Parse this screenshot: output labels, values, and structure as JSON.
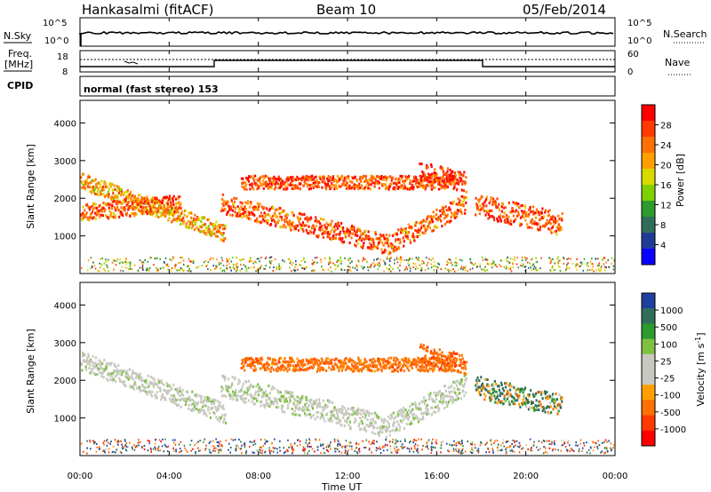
{
  "header": {
    "station": "Hankasalmi (fitACF)",
    "beam": "Beam 10",
    "date": "05/Feb/2014"
  },
  "summary": {
    "nsky_label": "N.Sky",
    "nsky_ticks": [
      "10^5",
      "10^0"
    ],
    "nsearch_label": "N.Search",
    "nsearch_ticks": [
      "10^5",
      "10^0"
    ],
    "freq_label_1": "Freq.",
    "freq_label_2": "[MHz]",
    "freq_ticks": [
      "18",
      "8"
    ],
    "nave_label": "Nave",
    "nave_ticks": [
      "60",
      "0"
    ],
    "cpid_label": "CPID",
    "cpid_text": "normal (fast stereo) 153"
  },
  "panels": {
    "y_label": "Slant Range [km]",
    "y_ticks": [
      "4000",
      "3000",
      "2000",
      "1000"
    ],
    "x_ticks": [
      "00:00",
      "04:00",
      "08:00",
      "12:00",
      "16:00",
      "20:00",
      "00:00"
    ],
    "x_label": "Time UT"
  },
  "colorbars": {
    "power": {
      "label": "Power [dB]",
      "ticks": [
        "28",
        "24",
        "20",
        "16",
        "12",
        "8",
        "4"
      ],
      "colors": [
        "#ff0000",
        "#ff3a00",
        "#ff7000",
        "#ff9f00",
        "#d9d900",
        "#7ed000",
        "#2e9a2e",
        "#2f6f5a",
        "#1e3c96",
        "#0a00ff"
      ]
    },
    "velocity": {
      "label": "Velocity [m s",
      "label_sup": "-1",
      "label_end": "]",
      "ticks": [
        "1000",
        "500",
        "100",
        "25",
        "-25",
        "-100",
        "-500",
        "-1000"
      ],
      "colors": [
        "#1f3fa0",
        "#2f6f5a",
        "#2e9a2e",
        "#7ec040",
        "#c8c8c0",
        "#c8c8c0",
        "#ff9f00",
        "#ff7000",
        "#ff3a00",
        "#ff0000"
      ]
    }
  },
  "chart_data": [
    {
      "type": "heatmap",
      "title": "",
      "xlabel": "Time UT",
      "ylabel": "Slant Range [km]",
      "xlim": [
        0,
        24
      ],
      "ylim": [
        0,
        4600
      ],
      "colorbar": "Power [dB]",
      "colorbar_range": [
        0,
        32
      ],
      "features": [
        {
          "t0": 0.0,
          "t1": 6.5,
          "r_start": 2500,
          "r_end": 1100,
          "width": 220,
          "value": 22
        },
        {
          "t0": 0.0,
          "t1": 4.5,
          "r_start": 1650,
          "r_end": 1900,
          "width": 220,
          "value": 26
        },
        {
          "t0": 6.3,
          "t1": 13.8,
          "r_start": 1900,
          "r_end": 800,
          "width": 260,
          "value": 27
        },
        {
          "t0": 13.8,
          "t1": 17.3,
          "r_start": 800,
          "r_end": 1900,
          "width": 260,
          "value": 26
        },
        {
          "t0": 7.2,
          "t1": 16.8,
          "r_start": 2450,
          "r_end": 2450,
          "width": 180,
          "value": 28
        },
        {
          "t0": 15.2,
          "t1": 17.3,
          "r_start": 2750,
          "r_end": 2450,
          "width": 260,
          "value": 29
        },
        {
          "t0": 17.7,
          "t1": 21.6,
          "r_start": 1850,
          "r_end": 1350,
          "width": 300,
          "value": 27
        }
      ]
    },
    {
      "type": "heatmap",
      "title": "",
      "xlabel": "Time UT",
      "ylabel": "Slant Range [km]",
      "xlim": [
        0,
        24
      ],
      "ylim": [
        0,
        4600
      ],
      "colorbar": "Velocity [m s-1]",
      "colorbar_range": [
        -1000,
        1000
      ],
      "features": [
        {
          "t0": 0.0,
          "t1": 6.5,
          "r_start": 2550,
          "r_end": 1150,
          "width": 260,
          "value": 0
        },
        {
          "t0": 6.3,
          "t1": 13.8,
          "r_start": 1900,
          "r_end": 800,
          "width": 300,
          "value": 0
        },
        {
          "t0": 13.8,
          "t1": 17.3,
          "r_start": 800,
          "r_end": 1900,
          "width": 300,
          "value": 0
        },
        {
          "t0": 7.2,
          "t1": 16.8,
          "r_start": 2450,
          "r_end": 2450,
          "width": 180,
          "value": -300
        },
        {
          "t0": 15.2,
          "t1": 17.3,
          "r_start": 2750,
          "r_end": 2450,
          "width": 260,
          "value": -400
        },
        {
          "t0": 17.7,
          "t1": 21.6,
          "r_start": 1850,
          "r_end": 1350,
          "width": 300,
          "value": 60
        }
      ]
    }
  ]
}
